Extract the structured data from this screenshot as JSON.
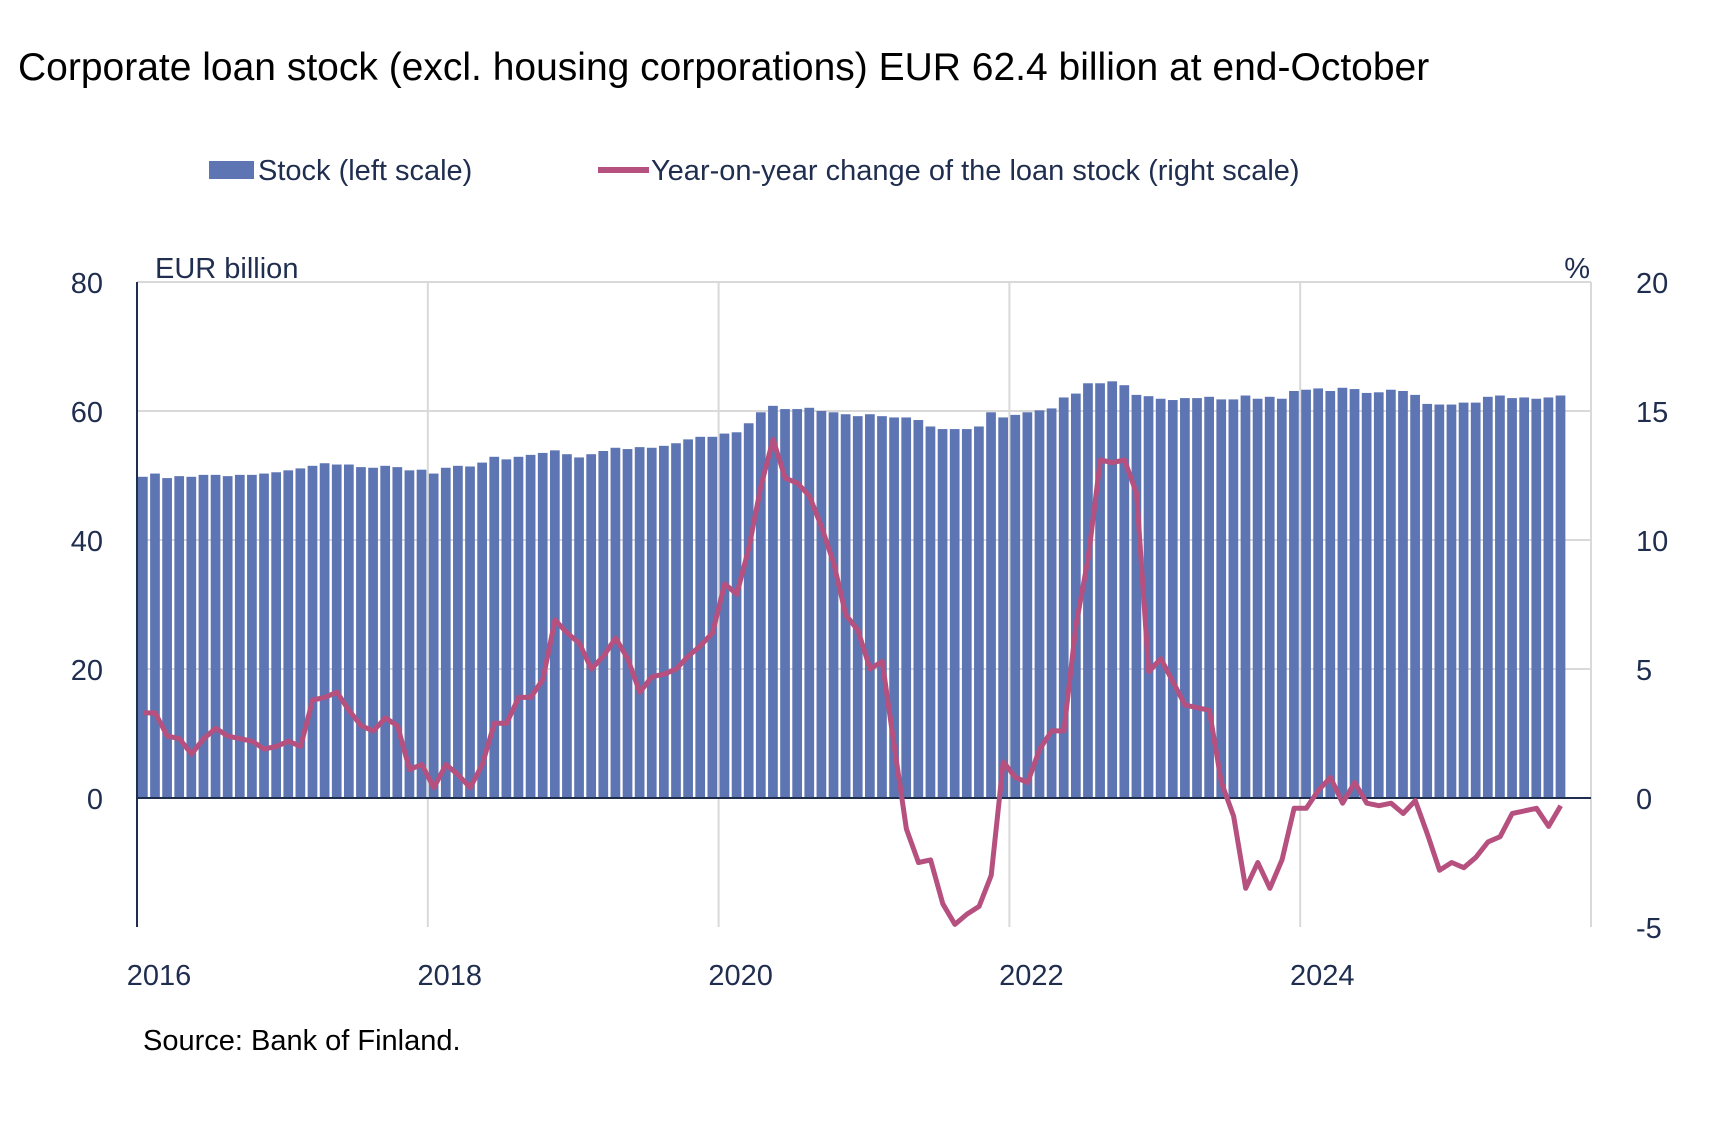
{
  "chart_data": {
    "type": "bar+line",
    "title": "Corporate loan stock (excl. housing corporations) EUR 62.4 billion at end-October",
    "source": "Source: Bank of Finland.",
    "left_axis": {
      "label": "EUR billion",
      "range": [
        -20,
        80
      ],
      "ticks": [
        0,
        20,
        40,
        60,
        80
      ]
    },
    "right_axis": {
      "label": "%",
      "range": [
        -5,
        20
      ],
      "ticks": [
        -5,
        0,
        5,
        10,
        15,
        20
      ]
    },
    "x_axis": {
      "start": "2016-01",
      "end": "2025-12",
      "tick_labels": [
        "2016",
        "2018",
        "2020",
        "2022",
        "2024"
      ]
    },
    "grid": true,
    "legend_placement": "top",
    "colors": {
      "bars": "#5E75B3",
      "line": "#B5507F",
      "text": "#1F2D4F",
      "grid": "#D9D9D9"
    },
    "series": [
      {
        "name": "Stock (left scale)",
        "type": "bar",
        "axis": "left",
        "x_start": "2016-01",
        "frequency": "monthly",
        "values": [
          49.8,
          50.3,
          49.6,
          49.9,
          49.8,
          50.1,
          50.1,
          49.9,
          50.1,
          50.1,
          50.3,
          50.5,
          50.8,
          51.1,
          51.5,
          51.9,
          51.7,
          51.7,
          51.3,
          51.2,
          51.5,
          51.3,
          50.8,
          50.9,
          50.3,
          51.2,
          51.5,
          51.4,
          52.0,
          52.9,
          52.5,
          52.9,
          53.2,
          53.5,
          53.9,
          53.3,
          52.8,
          53.3,
          53.8,
          54.3,
          54.1,
          54.4,
          54.3,
          54.6,
          55.0,
          55.6,
          56.0,
          56.0,
          56.5,
          56.7,
          58.1,
          59.8,
          60.8,
          60.3,
          60.3,
          60.5,
          60.0,
          59.8,
          59.5,
          59.2,
          59.5,
          59.2,
          59.0,
          59.0,
          58.6,
          57.6,
          57.2,
          57.2,
          57.2,
          57.6,
          59.8,
          59.0,
          59.4,
          59.8,
          60.1,
          60.4,
          62.1,
          62.7,
          64.3,
          64.3,
          64.6,
          64.0,
          62.5,
          62.3,
          61.9,
          61.7,
          62.0,
          62.0,
          62.2,
          61.8,
          61.8,
          62.4,
          61.9,
          62.2,
          61.9,
          63.1,
          63.3,
          63.5,
          63.1,
          63.6,
          63.4,
          62.8,
          62.9,
          63.3,
          63.1,
          62.5,
          61.1,
          61.0,
          61.0,
          61.3,
          61.3,
          62.2,
          62.4,
          62.0,
          62.1,
          61.9,
          62.1,
          62.4
        ]
      },
      {
        "name": "Year-on-year change of the loan stock (right scale)",
        "type": "line",
        "axis": "right",
        "x_start": "2016-01",
        "frequency": "monthly",
        "values": [
          3.3,
          3.3,
          2.4,
          2.3,
          1.7,
          2.3,
          2.7,
          2.4,
          2.3,
          2.2,
          1.9,
          2.0,
          2.2,
          2.0,
          3.8,
          3.9,
          4.1,
          3.4,
          2.8,
          2.6,
          3.1,
          2.8,
          1.1,
          1.3,
          0.4,
          1.3,
          0.9,
          0.4,
          1.3,
          2.9,
          2.9,
          3.9,
          3.9,
          4.6,
          6.9,
          6.4,
          6.0,
          5.0,
          5.5,
          6.2,
          5.4,
          4.1,
          4.7,
          4.8,
          5.0,
          5.5,
          5.9,
          6.4,
          8.3,
          7.9,
          9.7,
          12.1,
          13.9,
          12.4,
          12.2,
          11.7,
          10.5,
          9.1,
          7.1,
          6.5,
          5.0,
          5.3,
          2.0,
          -1.2,
          -2.5,
          -2.4,
          -4.1,
          -4.9,
          -4.5,
          -4.2,
          -3.0,
          1.4,
          0.8,
          0.6,
          1.9,
          2.6,
          2.6,
          6.7,
          9.3,
          13.1,
          13.0,
          13.1,
          11.8,
          4.9,
          5.4,
          4.5,
          3.6,
          3.5,
          3.4,
          0.6,
          -0.7,
          -3.5,
          -2.5,
          -3.5,
          -2.4,
          -0.4,
          -0.4,
          0.3,
          0.8,
          -0.2,
          0.6,
          -0.2,
          -0.3,
          -0.2,
          -0.6,
          -0.1,
          -1.4,
          -2.8,
          -2.5,
          -2.7,
          -2.3,
          -1.7,
          -1.5,
          -0.6,
          -0.5,
          -0.4,
          -1.1,
          -0.3
        ]
      }
    ]
  }
}
